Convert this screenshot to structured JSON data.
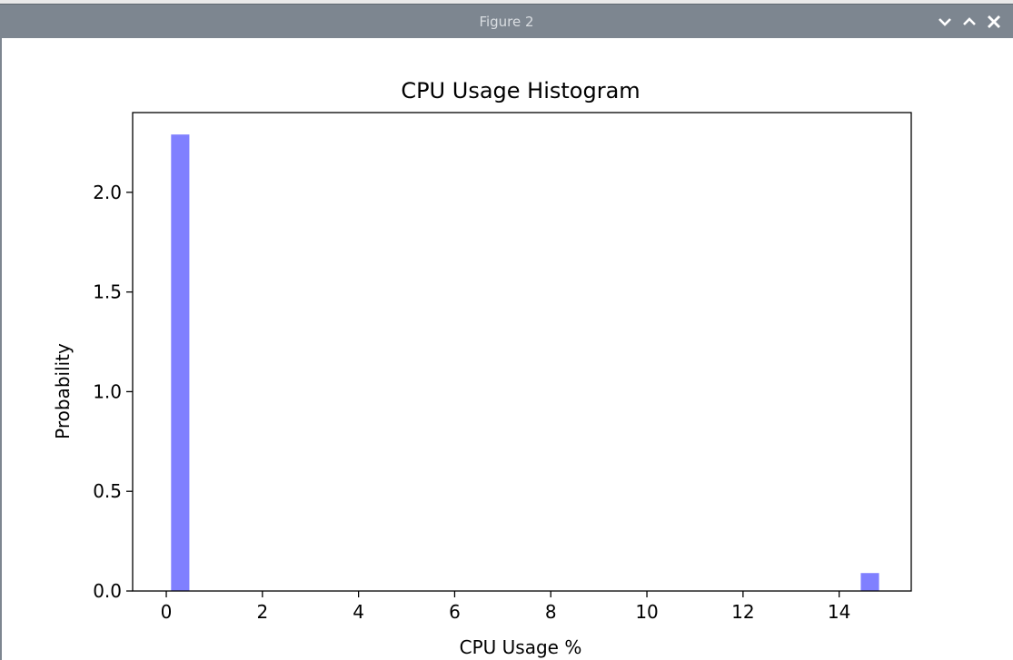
{
  "window": {
    "title": "Figure 2"
  },
  "colors": {
    "bar": "#8080ff",
    "titlebar": "#7d8690"
  },
  "icons": [
    "minimize-chevron-icon",
    "maximize-chevron-icon",
    "close-icon"
  ],
  "chart_data": {
    "type": "bar",
    "title": "CPU Usage Histogram",
    "xlabel": "CPU Usage %",
    "ylabel": "Probability",
    "xlim": [
      -0.7,
      15.5
    ],
    "ylim": [
      0,
      2.4
    ],
    "xticks": [
      0,
      2,
      4,
      6,
      8,
      10,
      12,
      14
    ],
    "yticks": [
      0.0,
      0.5,
      1.0,
      1.5,
      2.0
    ],
    "ytick_labels": [
      "0.0",
      "0.5",
      "1.0",
      "1.5",
      "2.0"
    ],
    "grid": false,
    "bins": [
      {
        "x0": 0.1,
        "x1": 0.48,
        "value": 2.29
      },
      {
        "x0": 14.45,
        "x1": 14.83,
        "value": 0.09
      }
    ]
  }
}
